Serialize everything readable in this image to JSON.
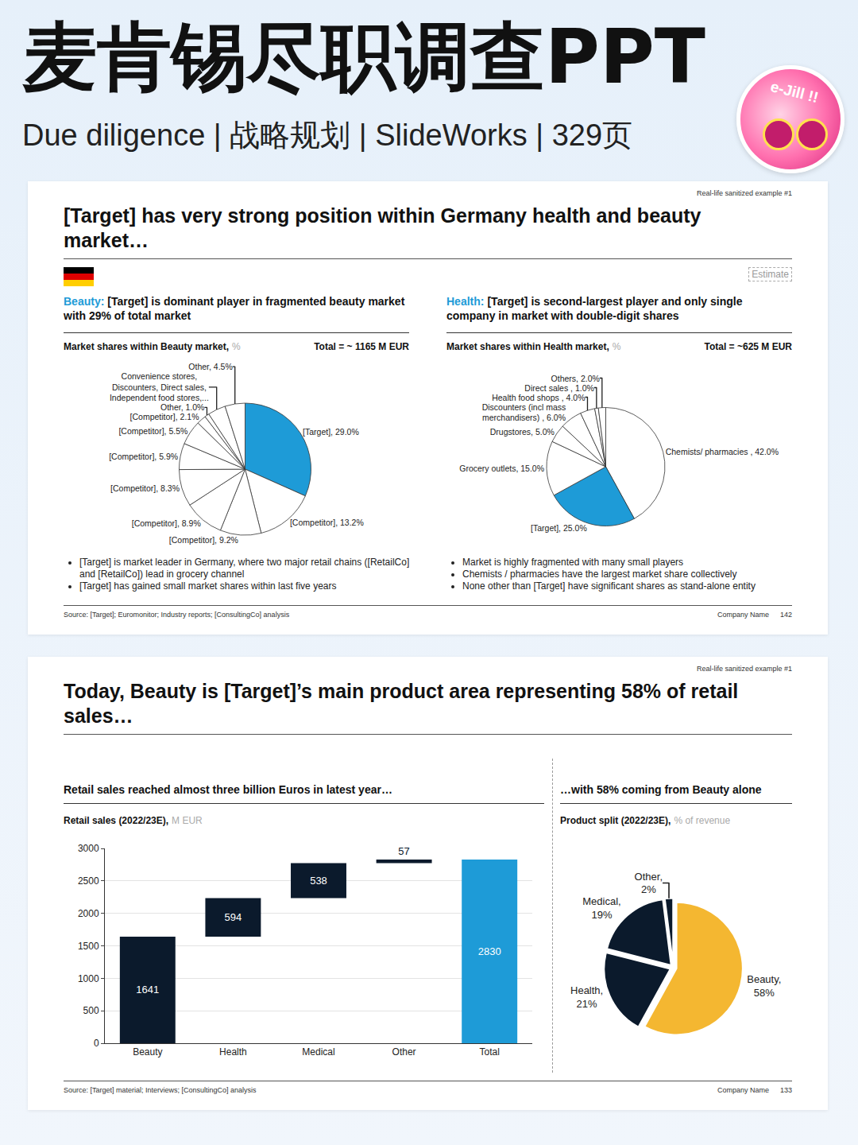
{
  "header": {
    "title": "麦肯锡尽职调查PPT",
    "subtitle": "Due diligence | 战略规划 | SlideWorks | 329页",
    "sticker": "e-Jill !!"
  },
  "slides": [
    {
      "tag": "Real-life sanitized example #1",
      "title": "[Target] has very strong position within Germany health and beauty market…",
      "badge": "Estimate",
      "panels": [
        {
          "label": "Beauty:",
          "heading": "[Target] is dominant player in fragmented beauty market with 29% of total market",
          "chart_title": "Market shares within Beauty market,",
          "chart_unit": "%",
          "total": "Total = ~ 1165 M EUR",
          "bullets": [
            "[Target] is market leader in Germany, where two major retail chains ([RetailCo] and [RetailCo]) lead in grocery channel",
            "[Target] has gained small market shares within last five years"
          ]
        },
        {
          "label": "Health:",
          "heading": "[Target] is second-largest player and only single company in market with double-digit shares",
          "chart_title": "Market shares within Health market,",
          "chart_unit": "%",
          "total": "Total = ~625 M EUR",
          "bullets": [
            "Market is highly fragmented with many small players",
            "Chemists / pharmacies have the largest market share collectively",
            "None other than [Target] have significant shares as stand-alone entity"
          ]
        }
      ],
      "source": "Source: [Target]; Euromonitor; Industry reports; [ConsultingCo] analysis",
      "company": "Company Name",
      "page": "142"
    },
    {
      "tag": "Real-life sanitized example #1",
      "title": "Today, Beauty is [Target]’s main product area representing 58% of retail sales…",
      "panels": [
        {
          "heading": "Retail sales reached almost three billion Euros in latest year…",
          "chart_title": "Retail sales (2022/23E),",
          "chart_unit": "M EUR"
        },
        {
          "heading": "…with 58% coming from Beauty alone",
          "chart_title": "Product split (2022/23E),",
          "chart_unit": "% of revenue"
        }
      ],
      "source": "Source: [Target] material; Interviews; [ConsultingCo] analysis",
      "company": "Company Name",
      "page": "133"
    }
  ],
  "chart_data": [
    {
      "type": "pie",
      "categories": [
        "[Target]",
        "[Competitor]",
        "[Competitor]",
        "[Competitor]",
        "[Competitor]",
        "[Competitor]",
        "[Competitor]",
        "[Competitor]",
        "Other",
        "Convenience stores, Discounters, Direct sales, Independent food stores,...",
        "Other"
      ],
      "values": [
        29.0,
        13.2,
        9.2,
        8.9,
        8.3,
        5.9,
        5.5,
        2.1,
        1.0,
        4.0,
        4.5
      ],
      "value_labels": [
        "[Target], 29.0%",
        "[Competitor], 13.2%",
        "[Competitor], 9.2%",
        "[Competitor], 8.9%",
        "[Competitor], 8.3%",
        "[Competitor], 5.9%",
        "[Competitor], 5.5%",
        "[Competitor], 2.1%",
        "Other, 1.0%",
        "Convenience stores, Discounters, Direct sales, Independent food stores,...",
        "Other, 4.5%"
      ],
      "colors": [
        "#1e9bd7",
        "#ffffff",
        "#ffffff",
        "#ffffff",
        "#ffffff",
        "#ffffff",
        "#ffffff",
        "#ffffff",
        "#ffffff",
        "#ffffff",
        "#ffffff"
      ],
      "data_labels": true
    },
    {
      "type": "pie",
      "categories": [
        "Chemists/ pharmacies",
        "[Target]",
        "Grocery outlets",
        "Drugstores",
        "Discounters (incl mass merchandisers)",
        "Health food shops",
        "Direct sales",
        "Others"
      ],
      "values": [
        42.0,
        25.0,
        15.0,
        5.0,
        6.0,
        4.0,
        1.0,
        2.0
      ],
      "value_labels": [
        "Chemists/ pharmacies , 42.0%",
        "[Target], 25.0%",
        "Grocery outlets, 15.0%",
        "Drugstores, 5.0%",
        "Discounters (incl mass merchandisers) , 6.0%",
        "Health food shops , 4.0%",
        "Direct sales , 1.0%",
        "Others, 2.0%"
      ],
      "colors": [
        "#ffffff",
        "#1e9bd7",
        "#ffffff",
        "#ffffff",
        "#ffffff",
        "#ffffff",
        "#ffffff",
        "#ffffff"
      ],
      "data_labels": true
    },
    {
      "type": "waterfall",
      "categories": [
        "Beauty",
        "Health",
        "Medical",
        "Other",
        "Total"
      ],
      "values": [
        1641,
        594,
        538,
        57,
        2830
      ],
      "colors": [
        "#0b1a2c",
        "#0b1a2c",
        "#0b1a2c",
        "#0b1a2c",
        "#1e9bd7"
      ],
      "ylim": [
        0,
        3000
      ],
      "yticks": [
        0,
        500,
        1000,
        1500,
        2000,
        2500,
        3000
      ],
      "grid": true,
      "data_labels": true
    },
    {
      "type": "pie",
      "categories": [
        "Beauty",
        "Health",
        "Medical",
        "Other"
      ],
      "values": [
        58,
        21,
        19,
        2
      ],
      "value_labels": [
        "Beauty, 58%",
        "Health, 21%",
        "Medical, 19%",
        "Other, 2%"
      ],
      "colors": [
        "#f4b731",
        "#0b1a2c",
        "#0b1a2c",
        "#0b1a2c"
      ],
      "data_labels": true
    }
  ]
}
